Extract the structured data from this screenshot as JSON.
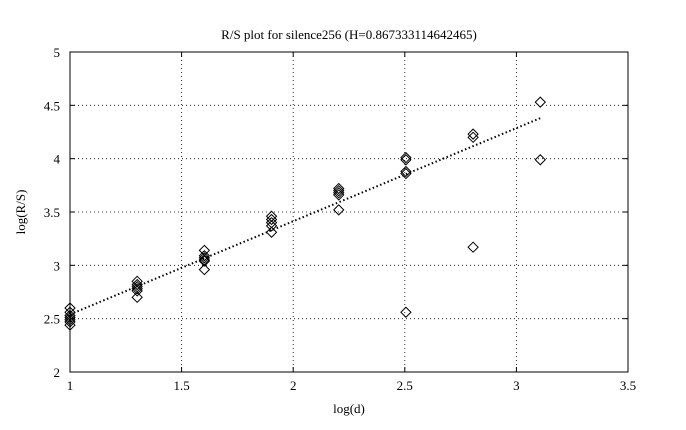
{
  "chart_data": {
    "type": "scatter",
    "title": "R/S plot for silence256 (H=0.867333114642465)",
    "xlabel": "log(d)",
    "ylabel": "log(R/S)",
    "xlim": [
      1,
      3.5
    ],
    "ylim": [
      2,
      5
    ],
    "xticks": [
      1,
      1.5,
      2,
      2.5,
      3,
      3.5
    ],
    "yticks": [
      2,
      2.5,
      3,
      3.5,
      4,
      4.5,
      5
    ],
    "xtick_labels": [
      "1",
      "1.5",
      "2",
      "2.5",
      "3",
      "3.5"
    ],
    "ytick_labels": [
      "2",
      "2.5",
      "3",
      "3.5",
      "4",
      "4.5",
      "5"
    ],
    "grid": true,
    "marker": "diamond",
    "series": [
      {
        "marker": "diamond",
        "x": [
          1.0,
          1.0,
          1.0,
          1.0,
          1.0,
          1.0,
          1.0,
          1.301,
          1.301,
          1.301,
          1.301,
          1.301,
          1.301,
          1.602,
          1.602,
          1.602,
          1.602,
          1.602,
          1.602,
          1.903,
          1.903,
          1.903,
          1.903,
          1.903,
          2.204,
          2.204,
          2.204,
          2.204,
          2.204,
          2.505,
          2.505,
          2.505,
          2.505,
          2.505,
          2.806,
          2.806,
          2.806,
          3.107,
          3.107
        ],
        "y": [
          2.6,
          2.56,
          2.53,
          2.51,
          2.49,
          2.47,
          2.44,
          2.85,
          2.82,
          2.8,
          2.78,
          2.76,
          2.7,
          3.14,
          3.09,
          3.07,
          3.05,
          3.04,
          2.96,
          3.46,
          3.43,
          3.4,
          3.37,
          3.31,
          3.72,
          3.7,
          3.68,
          3.66,
          3.52,
          4.01,
          3.99,
          3.88,
          3.86,
          2.56,
          4.23,
          4.2,
          3.17,
          4.53,
          3.99
        ]
      }
    ],
    "fit_line": {
      "style": "dotted",
      "x": [
        1.0,
        3.107
      ],
      "y": [
        2.54,
        4.38
      ]
    }
  }
}
